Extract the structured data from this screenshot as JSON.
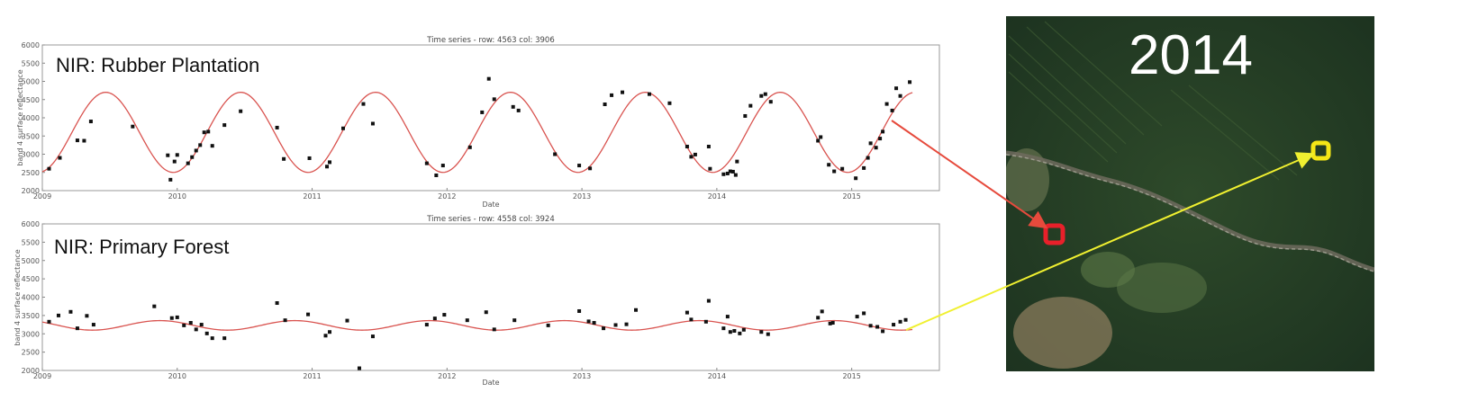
{
  "chart_data": [
    {
      "type": "scatter",
      "title": "Time series - row: 4563 col: 3906",
      "label": "NIR: Rubber Plantation",
      "xlabel": "Date",
      "ylabel": "band 4 surface reflectance",
      "xlim": [
        2009.0,
        2015.65
      ],
      "ylim": [
        2000,
        6000
      ],
      "xticks": [
        2009,
        2010,
        2011,
        2012,
        2013,
        2014,
        2015
      ],
      "yticks": [
        2000,
        2500,
        3000,
        3500,
        4000,
        4500,
        5000,
        5500,
        6000
      ],
      "grid": false,
      "fit": {
        "color": "#d9534f",
        "x_start": 2009.0,
        "x_end": 2015.45,
        "mean": 3600,
        "amplitude": 1100,
        "period": 1.0,
        "peak": 2009.47
      },
      "points": [
        [
          2009.05,
          2600
        ],
        [
          2009.13,
          2900
        ],
        [
          2009.26,
          3380
        ],
        [
          2009.31,
          3370
        ],
        [
          2009.36,
          3900
        ],
        [
          2009.67,
          3760
        ],
        [
          2009.93,
          2970
        ],
        [
          2009.95,
          2300
        ],
        [
          2009.98,
          2800
        ],
        [
          2010.0,
          2980
        ],
        [
          2010.08,
          2750
        ],
        [
          2010.11,
          2920
        ],
        [
          2010.14,
          3100
        ],
        [
          2010.17,
          3250
        ],
        [
          2010.2,
          3600
        ],
        [
          2010.23,
          3620
        ],
        [
          2010.26,
          3230
        ],
        [
          2010.35,
          3800
        ],
        [
          2010.47,
          4180
        ],
        [
          2010.74,
          3730
        ],
        [
          2010.79,
          2870
        ],
        [
          2010.98,
          2890
        ],
        [
          2011.11,
          2660
        ],
        [
          2011.13,
          2780
        ],
        [
          2011.23,
          3710
        ],
        [
          2011.38,
          4380
        ],
        [
          2011.45,
          3840
        ],
        [
          2011.85,
          2750
        ],
        [
          2011.92,
          2420
        ],
        [
          2011.97,
          2690
        ],
        [
          2012.17,
          3190
        ],
        [
          2012.26,
          4150
        ],
        [
          2012.31,
          5070
        ],
        [
          2012.35,
          4510
        ],
        [
          2012.49,
          4300
        ],
        [
          2012.53,
          4200
        ],
        [
          2012.8,
          3000
        ],
        [
          2012.98,
          2690
        ],
        [
          2013.06,
          2610
        ],
        [
          2013.17,
          4370
        ],
        [
          2013.22,
          4620
        ],
        [
          2013.3,
          4700
        ],
        [
          2013.5,
          4650
        ],
        [
          2013.65,
          4400
        ],
        [
          2013.78,
          3210
        ],
        [
          2013.81,
          2930
        ],
        [
          2013.84,
          2990
        ],
        [
          2013.94,
          3210
        ],
        [
          2013.95,
          2600
        ],
        [
          2014.05,
          2450
        ],
        [
          2014.08,
          2470
        ],
        [
          2014.1,
          2530
        ],
        [
          2014.12,
          2520
        ],
        [
          2014.14,
          2430
        ],
        [
          2014.15,
          2800
        ],
        [
          2014.21,
          4050
        ],
        [
          2014.25,
          4330
        ],
        [
          2014.33,
          4600
        ],
        [
          2014.36,
          4650
        ],
        [
          2014.4,
          4440
        ],
        [
          2014.75,
          3370
        ],
        [
          2014.77,
          3470
        ],
        [
          2014.83,
          2710
        ],
        [
          2014.87,
          2530
        ],
        [
          2014.93,
          2600
        ],
        [
          2015.03,
          2340
        ],
        [
          2015.09,
          2620
        ],
        [
          2015.12,
          2900
        ],
        [
          2015.14,
          3300
        ],
        [
          2015.18,
          3180
        ],
        [
          2015.21,
          3430
        ],
        [
          2015.23,
          3620
        ],
        [
          2015.26,
          4380
        ],
        [
          2015.3,
          4200
        ],
        [
          2015.33,
          4810
        ],
        [
          2015.36,
          4600
        ],
        [
          2015.43,
          4980
        ]
      ]
    },
    {
      "type": "scatter",
      "title": "Time series - row: 4558 col: 3924",
      "label": "NIR: Primary Forest",
      "xlabel": "Date",
      "ylabel": "band 4 surface reflectance",
      "xlim": [
        2009.0,
        2015.65
      ],
      "ylim": [
        2000,
        6000
      ],
      "xticks": [
        2009,
        2010,
        2011,
        2012,
        2013,
        2014,
        2015
      ],
      "yticks": [
        2000,
        2500,
        3000,
        3500,
        4000,
        4500,
        5000,
        5500,
        6000
      ],
      "grid": false,
      "fit": {
        "color": "#d9534f",
        "x_start": 2009.0,
        "x_end": 2015.45,
        "mean": 3230,
        "amplitude": 130,
        "period": 1.0,
        "peak": 2009.87
      },
      "points": [
        [
          2009.05,
          3330
        ],
        [
          2009.12,
          3500
        ],
        [
          2009.21,
          3600
        ],
        [
          2009.26,
          3150
        ],
        [
          2009.33,
          3490
        ],
        [
          2009.38,
          3250
        ],
        [
          2009.83,
          3750
        ],
        [
          2009.96,
          3430
        ],
        [
          2010.0,
          3450
        ],
        [
          2010.05,
          3230
        ],
        [
          2010.1,
          3300
        ],
        [
          2010.14,
          3120
        ],
        [
          2010.18,
          3250
        ],
        [
          2010.22,
          3010
        ],
        [
          2010.26,
          2880
        ],
        [
          2010.35,
          2880
        ],
        [
          2010.74,
          3840
        ],
        [
          2010.8,
          3370
        ],
        [
          2010.97,
          3530
        ],
        [
          2011.1,
          2950
        ],
        [
          2011.13,
          3050
        ],
        [
          2011.26,
          3360
        ],
        [
          2011.35,
          2060
        ],
        [
          2011.45,
          2930
        ],
        [
          2011.85,
          3250
        ],
        [
          2011.91,
          3420
        ],
        [
          2011.98,
          3520
        ],
        [
          2012.15,
          3370
        ],
        [
          2012.29,
          3590
        ],
        [
          2012.35,
          3120
        ],
        [
          2012.5,
          3370
        ],
        [
          2012.75,
          3230
        ],
        [
          2012.98,
          3620
        ],
        [
          2013.05,
          3340
        ],
        [
          2013.09,
          3300
        ],
        [
          2013.16,
          3150
        ],
        [
          2013.25,
          3240
        ],
        [
          2013.33,
          3260
        ],
        [
          2013.4,
          3650
        ],
        [
          2013.78,
          3580
        ],
        [
          2013.81,
          3390
        ],
        [
          2013.92,
          3330
        ],
        [
          2013.94,
          3900
        ],
        [
          2014.05,
          3150
        ],
        [
          2014.08,
          3470
        ],
        [
          2014.1,
          3050
        ],
        [
          2014.13,
          3080
        ],
        [
          2014.17,
          3010
        ],
        [
          2014.2,
          3110
        ],
        [
          2014.33,
          3050
        ],
        [
          2014.38,
          2990
        ],
        [
          2014.75,
          3440
        ],
        [
          2014.78,
          3610
        ],
        [
          2014.84,
          3280
        ],
        [
          2014.86,
          3300
        ],
        [
          2015.04,
          3470
        ],
        [
          2015.09,
          3560
        ],
        [
          2015.14,
          3220
        ],
        [
          2015.19,
          3190
        ],
        [
          2015.23,
          3070
        ],
        [
          2015.31,
          3250
        ],
        [
          2015.36,
          3330
        ],
        [
          2015.4,
          3380
        ]
      ]
    }
  ],
  "satellite": {
    "year": "2014",
    "markers": [
      {
        "name": "rubber-plantation-marker",
        "color": "#e8202a"
      },
      {
        "name": "primary-forest-marker",
        "color": "#f5e716"
      }
    ]
  },
  "arrows": [
    {
      "name": "rubber-plantation-arrow",
      "color": "#e64a3c"
    },
    {
      "name": "primary-forest-arrow",
      "color": "#f0f030"
    }
  ]
}
